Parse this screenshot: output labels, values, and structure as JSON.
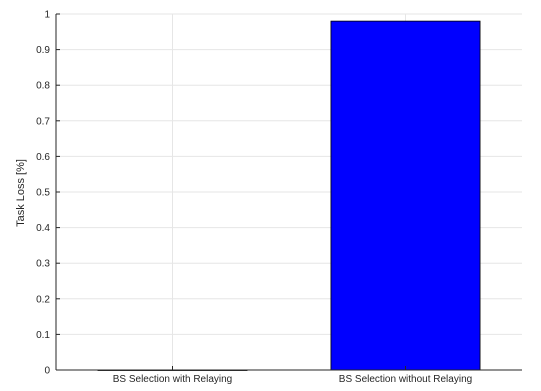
{
  "chart_data": {
    "type": "bar",
    "categories": [
      "BS Selection with Relaying",
      "BS Selection without Relaying"
    ],
    "values": [
      0.0,
      0.98
    ],
    "title": "",
    "xlabel": "",
    "ylabel": "Task Loss [%]",
    "ylim": [
      0,
      1
    ],
    "yticks": [
      "0",
      "0.1",
      "0.2",
      "0.3",
      "0.4",
      "0.5",
      "0.6",
      "0.7",
      "0.8",
      "0.9",
      "1"
    ],
    "grid": true,
    "bar_color": "#0000ff",
    "bar_edge_color": "#000000"
  }
}
